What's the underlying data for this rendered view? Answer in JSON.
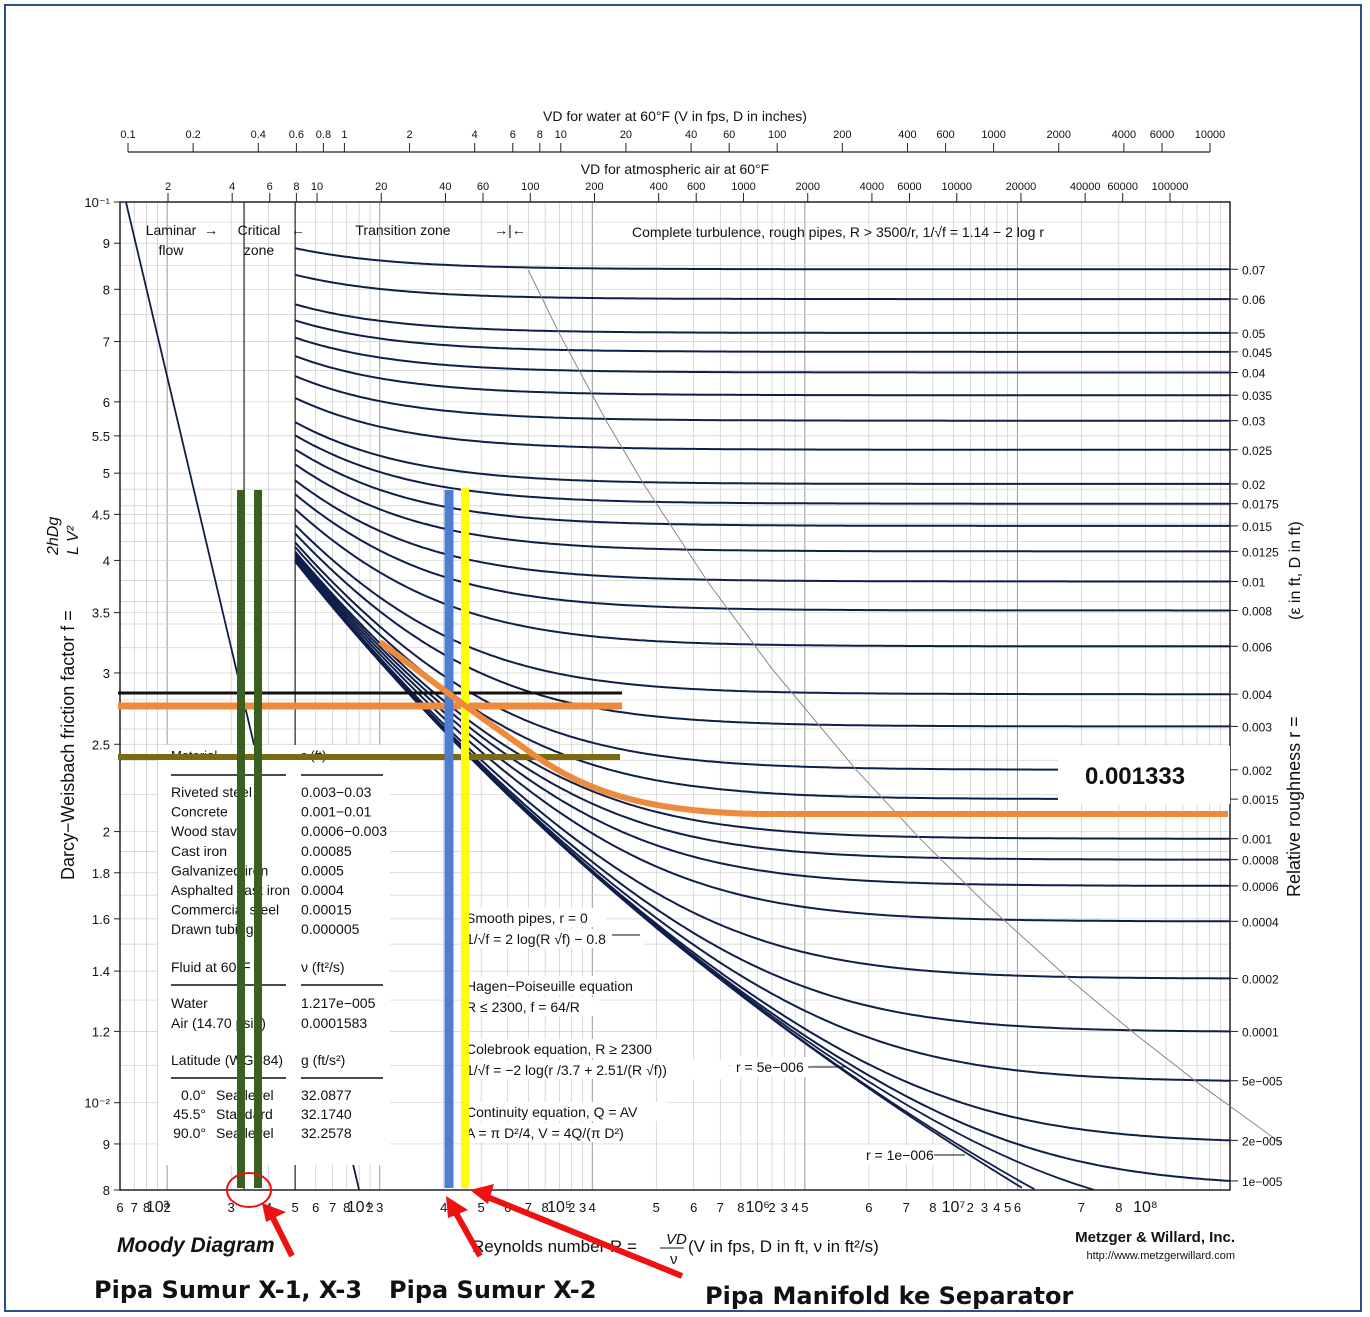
{
  "chart_data": {
    "type": "line",
    "title": "Moody Diagram",
    "xlabel": "Reynolds number",
    "xlabel_tail": "(V in fps, D in ft, ν in ft²/s)",
    "ylabel": "Darcy−Weisbach friction factor",
    "y2label": "Relative roughness",
    "y2label_tail": "(ε in ft, D in ft)",
    "x_scale": "log",
    "y_scale": "log",
    "xlim": [
      600,
      100000000
    ],
    "ylim": [
      0.008,
      0.1
    ],
    "grid": true,
    "x_ticks": [
      "6",
      "7",
      "8",
      "10³",
      "2",
      "3",
      "4",
      "5",
      "6",
      "7",
      "8",
      "10⁴",
      "2",
      "3",
      "4",
      "5",
      "6",
      "7",
      "8",
      "10⁵",
      "2",
      "3",
      "4",
      "5",
      "6",
      "7",
      "8",
      "10⁶",
      "2",
      "3",
      "4",
      "5",
      "6",
      "7",
      "8",
      "10⁷",
      "2",
      "3",
      "4",
      "5",
      "6",
      "7",
      "8",
      "10⁸"
    ],
    "y_ticks": [
      "10⁻¹",
      "9",
      "8",
      "7",
      "6",
      "5.5",
      "5",
      "4.5",
      "4",
      "3.5",
      "3",
      "2.5",
      "2",
      "1.8",
      "1.6",
      "1.4",
      "1.2",
      "10⁻²",
      "9",
      "8"
    ],
    "roughness_series": [
      0.07,
      0.06,
      0.05,
      0.045,
      0.04,
      0.035,
      0.03,
      0.025,
      0.02,
      0.0175,
      0.015,
      0.0125,
      0.01,
      0.008,
      0.006,
      0.004,
      0.003,
      0.002,
      0.0015,
      0.001,
      0.0008,
      0.0006,
      0.0004,
      0.0002,
      0.0001,
      5e-05,
      2e-05,
      1e-05
    ],
    "roughness_labels": [
      "0.07",
      "0.06",
      "0.05",
      "0.045",
      "0.04",
      "0.035",
      "0.03",
      "0.025",
      "0.02",
      "0.0175",
      "0.015",
      "0.0125",
      "0.01",
      "0.008",
      "0.006",
      "0.004",
      "0.003",
      "0.002",
      "0.0015",
      "0.001",
      "0.0008",
      "0.0006",
      "0.0004",
      "0.0002",
      "0.0001",
      "5e−005",
      "2e−005",
      "1e−005"
    ],
    "zones": [
      "Laminar flow",
      "Critical zone",
      "Transition zone",
      "Complete turbulence, rough pipes, R > 3500/r, 1/√f = 1.14 − 2 log r"
    ],
    "curve_labels": [
      "r = 5e−006",
      "r = 1e−006"
    ],
    "top_axis_water": {
      "label": "VD for water at 60°F (V in fps, D in inches)",
      "ticks": [
        "0.1",
        "0.2",
        "0.4",
        "0.6",
        "0.8",
        "1",
        "2",
        "4",
        "6",
        "8",
        "10",
        "20",
        "40",
        "60",
        "100",
        "200",
        "400",
        "600",
        "1000",
        "2000",
        "4000",
        "6000",
        "10000"
      ]
    },
    "top_axis_air": {
      "label": "VD for atmospheric air at 60°F",
      "ticks": [
        "2",
        "4",
        "6",
        "8",
        "10",
        "20",
        "40",
        "60",
        "100",
        "200",
        "400",
        "600",
        "1000",
        "2000",
        "4000",
        "6000",
        "10000",
        "20000",
        "40000",
        "60000",
        "100000"
      ]
    },
    "material_table": {
      "headers": [
        "Material",
        "ε (ft)"
      ],
      "rows": [
        [
          "Riveted steel",
          "0.003−0.03"
        ],
        [
          "Concrete",
          "0.001−0.01"
        ],
        [
          "Wood stave",
          "0.0006−0.003"
        ],
        [
          "Cast iron",
          "0.00085"
        ],
        [
          "Galvanized iron",
          "0.0005"
        ],
        [
          "Asphalted cast iron",
          "0.0004"
        ],
        [
          "Commercial steel",
          "0.00015"
        ],
        [
          "Drawn tubing",
          "0.000005"
        ]
      ],
      "fluid_headers": [
        "Fluid at 60°F",
        "ν (ft²/s)"
      ],
      "fluid_rows": [
        [
          "Water",
          "1.217e−005"
        ],
        [
          "Air (14.70 psia)",
          "0.0001583"
        ]
      ],
      "lat_headers": [
        "Latitude (WGS84)",
        "g (ft/s²)"
      ],
      "lat_rows": [
        [
          "0.0°",
          "Sea level",
          "32.0877"
        ],
        [
          "45.5°",
          "Standard",
          "32.1740"
        ],
        [
          "90.0°",
          "Sea level",
          "32.2578"
        ]
      ]
    },
    "equations": [
      "Smooth pipes, r = 0",
      "1/√f = 2 log(R √f) − 0.8",
      "Hagen−Poiseuille equation",
      "R ≤ 2300, f = 64/R",
      "Colebrook equation, R ≥ 2300",
      "1/√f = −2 log(r /3.7 + 2.51/(R √f))",
      "Continuity equation, Q = AV",
      "A = π D²/4, V = 4Q/(π D²)"
    ],
    "publisher": "Metzger & Willard, Inc.",
    "publisher_url": "http://www.metzgerwillard.com",
    "highlight_roughness": "0.001333",
    "overlay_colors": {
      "green": "#3a5f1f",
      "blue": "#4f7ed1",
      "yellow": "#ffff00",
      "orange": "#ed8a3c",
      "olive": "#7a6a12",
      "black": "#111111",
      "red": "#ee1111",
      "value_green": "#1fa04a",
      "curve": "#101e4a"
    },
    "annotations": [
      "Pipa Sumur X-1, X-3",
      "Pipa Sumur X-2",
      "Pipa Manifold ke Separator"
    ]
  }
}
